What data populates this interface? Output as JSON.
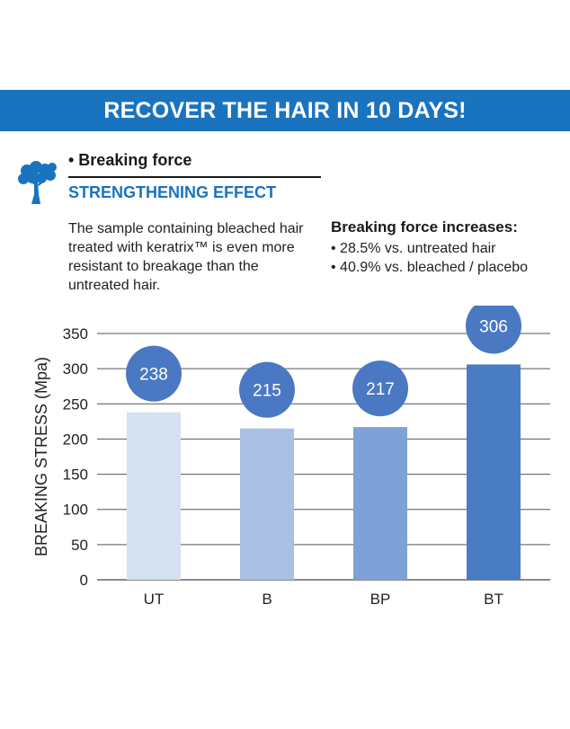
{
  "banner": {
    "title": "RECOVER THE HAIR IN 10 DAYS!"
  },
  "section": {
    "heading": "• Breaking force",
    "subheading": "STRENGTHENING EFFECT",
    "icon": "tree-icon",
    "description_lines": [
      "The sample containing bleached hair",
      "treated with keratrix™ is even more",
      "resistant to breakage than the",
      "untreated hair."
    ],
    "increase_title": "Breaking force increases:",
    "increase_items": [
      "• 28.5% vs. untreated hair",
      "• 40.9% vs. bleached / placebo"
    ]
  },
  "colors": {
    "brand": "#1a73be",
    "bubble": "#4a78c2",
    "bars": [
      "#d5e0f1",
      "#a9c0e4",
      "#7ea1d8",
      "#4a7cc3"
    ]
  },
  "chart_data": {
    "type": "bar",
    "categories": [
      "UT",
      "B",
      "BP",
      "BT"
    ],
    "values": [
      238,
      215,
      217,
      306
    ],
    "data_labels": [
      "238",
      "215",
      "217",
      "306"
    ],
    "ylabel": "BREAKING STRESS (Mpa)",
    "xlabel": "",
    "ylim": [
      0,
      350
    ],
    "yticks": [
      0,
      50,
      100,
      150,
      200,
      250,
      300,
      350
    ],
    "grid": true,
    "legend": "none"
  }
}
